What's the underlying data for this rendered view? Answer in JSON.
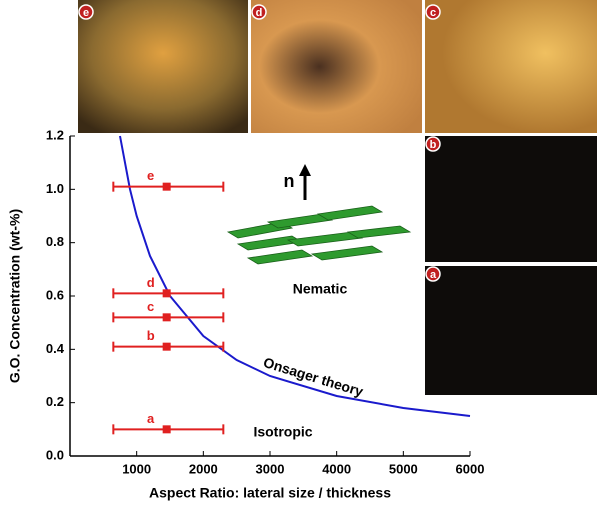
{
  "chart_data": {
    "type": "scatter-line",
    "xlabel": "Aspect Ratio: lateral size / thickness",
    "ylabel": "G.O. Concentration (wt-%)",
    "xlim": [
      0,
      6000
    ],
    "xticks": [
      1000,
      2000,
      3000,
      4000,
      5000,
      6000
    ],
    "ylim": [
      0,
      1.2
    ],
    "yticks": [
      {
        "value": 0,
        "label": "0.0"
      },
      0.2,
      0.4,
      0.6,
      0.8,
      {
        "value": 1,
        "label": "1.0"
      },
      1.2
    ],
    "points": {
      "color": "#e02020",
      "labels": [
        "a",
        "b",
        "c",
        "d",
        "e"
      ],
      "x": [
        1450,
        1450,
        1450,
        1450,
        1450
      ],
      "y": [
        0.1,
        0.41,
        0.52,
        0.61,
        1.01
      ],
      "x_low": [
        650,
        650,
        650,
        650,
        650
      ],
      "x_high": [
        2300,
        2300,
        2300,
        2300,
        2300
      ]
    },
    "curve": {
      "color": "#1a1acc",
      "x": [
        750,
        900,
        1000,
        1200,
        1500,
        2000,
        2500,
        3000,
        4000,
        5000,
        6000
      ],
      "y": [
        1.2,
        1.0,
        0.9,
        0.75,
        0.6,
        0.45,
        0.36,
        0.3,
        0.225,
        0.18,
        0.15
      ]
    },
    "annotations": [
      "Onsager theory",
      "Nematic",
      "Isotropic",
      "n"
    ]
  },
  "panels": [
    "e",
    "d",
    "c",
    "b",
    "a"
  ]
}
